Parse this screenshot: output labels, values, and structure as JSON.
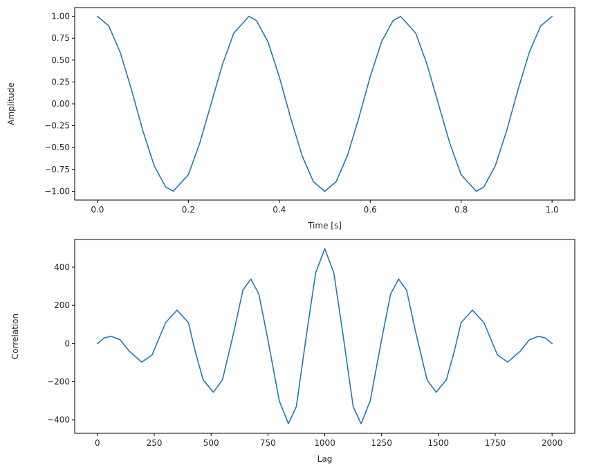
{
  "chart_data": [
    {
      "type": "line",
      "title": "",
      "xlabel": "Time [s]",
      "ylabel": "Amplitude",
      "xlim": [
        -0.05,
        1.05
      ],
      "ylim": [
        -1.1,
        1.1
      ],
      "xticks": [
        0.0,
        0.2,
        0.4,
        0.6,
        0.8,
        1.0
      ],
      "xtick_labels": [
        "0.0",
        "0.2",
        "0.4",
        "0.6",
        "0.8",
        "1.0"
      ],
      "yticks": [
        -1.0,
        -0.75,
        -0.5,
        -0.25,
        0.0,
        0.25,
        0.5,
        0.75,
        1.0
      ],
      "ytick_labels": [
        "−1.00",
        "−0.75",
        "−0.50",
        "−0.25",
        "0.00",
        "0.25",
        "0.50",
        "0.75",
        "1.00"
      ],
      "grid": false,
      "series": [
        {
          "color": "#1f77b4",
          "x": [
            0.0,
            0.025,
            0.05,
            0.075,
            0.1,
            0.125,
            0.15,
            0.1667,
            0.2,
            0.225,
            0.25,
            0.275,
            0.3,
            0.3333,
            0.35,
            0.375,
            0.4,
            0.425,
            0.45,
            0.475,
            0.5,
            0.525,
            0.55,
            0.575,
            0.6,
            0.625,
            0.65,
            0.6667,
            0.7,
            0.725,
            0.75,
            0.775,
            0.8,
            0.8333,
            0.85,
            0.875,
            0.9,
            0.925,
            0.95,
            0.975,
            1.0
          ],
          "y": [
            1.0,
            0.89,
            0.59,
            0.16,
            -0.31,
            -0.71,
            -0.95,
            -1.0,
            -0.81,
            -0.45,
            0.0,
            0.45,
            0.81,
            1.0,
            0.95,
            0.71,
            0.31,
            -0.16,
            -0.59,
            -0.89,
            -1.0,
            -0.89,
            -0.59,
            -0.16,
            0.31,
            0.71,
            0.95,
            1.0,
            0.81,
            0.45,
            0.0,
            -0.45,
            -0.81,
            -1.0,
            -0.95,
            -0.71,
            -0.31,
            0.16,
            0.59,
            0.89,
            1.0
          ]
        }
      ]
    },
    {
      "type": "line",
      "title": "",
      "xlabel": "Lag",
      "ylabel": "Correlation",
      "xlim": [
        -100,
        2100
      ],
      "ylim": [
        -470,
        545
      ],
      "xticks": [
        0,
        250,
        500,
        750,
        1000,
        1250,
        1500,
        1750,
        2000
      ],
      "xtick_labels": [
        "0",
        "250",
        "500",
        "750",
        "1000",
        "1250",
        "1500",
        "1750",
        "2000"
      ],
      "yticks": [
        -400,
        -200,
        0,
        200,
        400
      ],
      "ytick_labels": [
        "−400",
        "−200",
        "0",
        "200",
        "400"
      ],
      "grid": false,
      "series": [
        {
          "color": "#1f77b4",
          "x": [
            0,
            30,
            60,
            100,
            140,
            195,
            240,
            300,
            350,
            400,
            430,
            465,
            510,
            550,
            600,
            640,
            675,
            710,
            750,
            800,
            840,
            875,
            920,
            960,
            1000,
            1040,
            1080,
            1125,
            1160,
            1200,
            1250,
            1290,
            1325,
            1360,
            1400,
            1450,
            1490,
            1535,
            1570,
            1600,
            1650,
            1700,
            1760,
            1805,
            1860,
            1900,
            1940,
            1970,
            2000
          ],
          "y": [
            0,
            30,
            38,
            20,
            -40,
            -97,
            -60,
            110,
            175,
            110,
            -40,
            -190,
            -255,
            -190,
            60,
            280,
            338,
            260,
            20,
            -300,
            -420,
            -330,
            50,
            370,
            497,
            370,
            50,
            -330,
            -420,
            -300,
            20,
            260,
            338,
            280,
            60,
            -190,
            -255,
            -190,
            -40,
            110,
            175,
            110,
            -60,
            -97,
            -40,
            20,
            38,
            30,
            0
          ]
        }
      ]
    }
  ]
}
